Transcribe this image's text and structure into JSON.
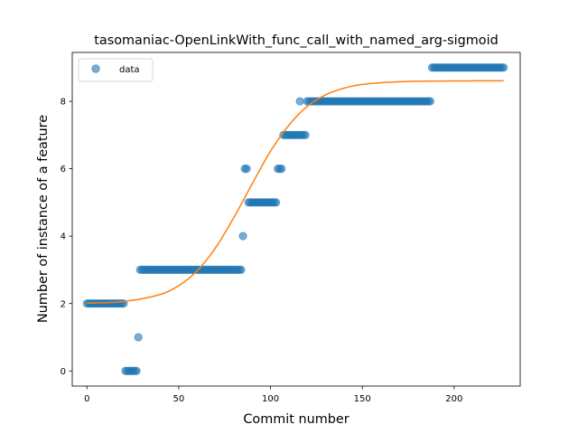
{
  "chart_data": {
    "type": "scatter",
    "title": "tasomaniac-OpenLinkWith_func_call_with_named_arg-sigmoid",
    "xlabel": "Commit number",
    "ylabel": "Number of instance of a feature",
    "xlim": [
      -8,
      236
    ],
    "ylim": [
      -0.45,
      9.45
    ],
    "xticks": [
      0,
      50,
      100,
      150,
      200
    ],
    "yticks": [
      0,
      2,
      4,
      6,
      8
    ],
    "grid": false,
    "legend_position": "top-left",
    "series": [
      {
        "name": "data",
        "kind": "points",
        "color": "#1f77b4",
        "runs": [
          {
            "x_start": 0,
            "x_end": 20,
            "y": 2
          },
          {
            "x_start": 21,
            "x_end": 27,
            "y": 0
          },
          {
            "x_start": 28,
            "x_end": 28,
            "y": 1
          },
          {
            "x_start": 29,
            "x_end": 84,
            "y": 3
          },
          {
            "x_start": 85,
            "x_end": 85,
            "y": 4
          },
          {
            "x_start": 86,
            "x_end": 87,
            "y": 6
          },
          {
            "x_start": 88,
            "x_end": 103,
            "y": 5
          },
          {
            "x_start": 104,
            "x_end": 106,
            "y": 6
          },
          {
            "x_start": 107,
            "x_end": 119,
            "y": 7
          },
          {
            "x_start": 116,
            "x_end": 116,
            "y": 8
          },
          {
            "x_start": 120,
            "x_end": 187,
            "y": 8
          },
          {
            "x_start": 188,
            "x_end": 227,
            "y": 9
          }
        ]
      },
      {
        "name": "",
        "kind": "sigmoid_fit",
        "color": "#ff7f0e",
        "x_start": 0,
        "x_end": 227,
        "samples": [
          [
            0,
            2.01
          ],
          [
            20,
            2.06
          ],
          [
            40,
            2.27
          ],
          [
            50,
            2.53
          ],
          [
            60,
            2.97
          ],
          [
            70,
            3.65
          ],
          [
            80,
            4.55
          ],
          [
            90,
            5.55
          ],
          [
            100,
            6.52
          ],
          [
            110,
            7.29
          ],
          [
            120,
            7.85
          ],
          [
            130,
            8.19
          ],
          [
            140,
            8.39
          ],
          [
            150,
            8.5
          ],
          [
            170,
            8.58
          ],
          [
            190,
            8.6
          ],
          [
            227,
            8.61
          ]
        ]
      }
    ]
  }
}
